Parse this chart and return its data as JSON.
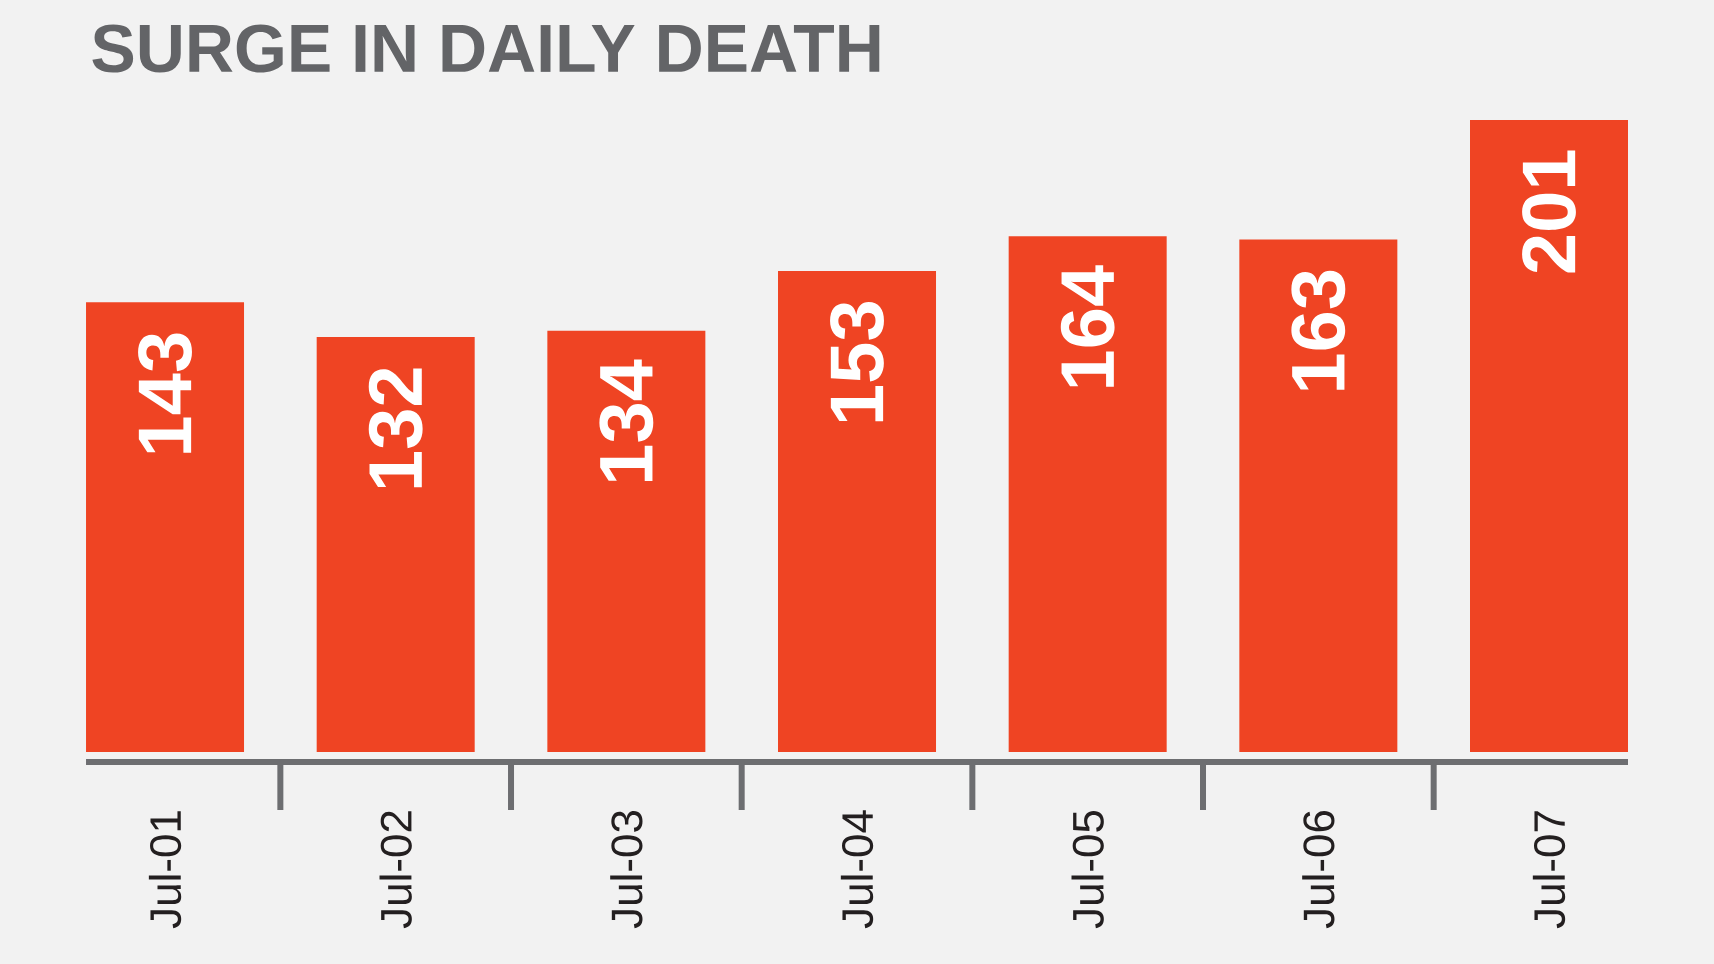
{
  "chart_data": {
    "type": "bar",
    "title": "SURGE IN DAILY DEATH",
    "categories": [
      "Jul-01",
      "Jul-02",
      "Jul-03",
      "Jul-04",
      "Jul-05",
      "Jul-06",
      "Jul-07"
    ],
    "values": [
      143,
      132,
      134,
      153,
      164,
      163,
      201
    ],
    "color": "#ef4423",
    "data_labels": true
  }
}
